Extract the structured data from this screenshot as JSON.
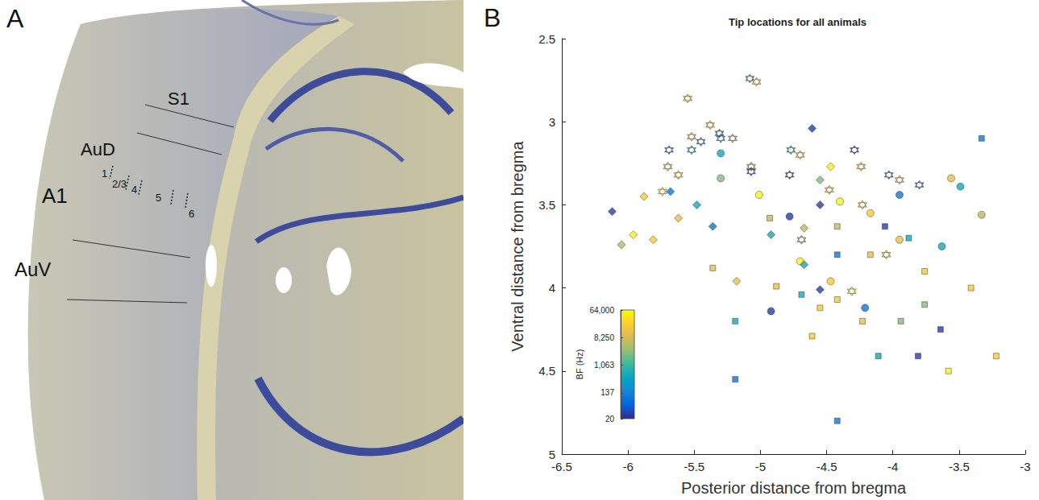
{
  "panel_a": {
    "letter": "A",
    "regions": [
      "S1",
      "AuD",
      "A1",
      "AuV"
    ],
    "layers": [
      "1",
      "2/3",
      "4",
      "5",
      "6"
    ]
  },
  "panel_b": {
    "letter": "B"
  },
  "chart_data": {
    "type": "scatter",
    "title": "Tip locations for all animals",
    "x_label": "Posterior distance from bregma",
    "y_label": "Ventral distance from bregma",
    "xlim": [
      -6.5,
      -3
    ],
    "xticks": [
      -6.5,
      -6,
      -5.5,
      -5,
      -4.5,
      -4,
      -3.5,
      -3
    ],
    "ylim": [
      2.5,
      5
    ],
    "yticks": [
      2.5,
      3,
      3.5,
      4,
      4.5,
      5
    ],
    "y_inverted": true,
    "grid": false,
    "colorbar": {
      "label": "BF (Hz)",
      "log": true,
      "lim": [
        20,
        64000
      ],
      "ticks": [
        20,
        137,
        1063,
        8250,
        64000
      ]
    },
    "series": [
      {
        "marker": "hexagram",
        "values": [
          [
            -5.08,
            2.74,
            500
          ],
          [
            -5.03,
            2.76,
            19000
          ],
          [
            -5.55,
            2.86,
            19000
          ],
          [
            -5.38,
            3.02,
            12000
          ],
          [
            -5.52,
            3.09,
            12000
          ],
          [
            -5.45,
            3.12,
            100
          ],
          [
            -5.31,
            3.07,
            100
          ],
          [
            -5.3,
            3.1,
            500
          ],
          [
            -5.21,
            3.1,
            2500
          ],
          [
            -5.69,
            3.17,
            100
          ],
          [
            -5.52,
            3.17,
            500
          ],
          [
            -5.7,
            3.27,
            12000
          ],
          [
            -5.62,
            3.32,
            19000
          ],
          [
            -5.07,
            3.27,
            2500
          ],
          [
            -5.07,
            3.3,
            30
          ],
          [
            -4.77,
            3.17,
            500
          ],
          [
            -4.7,
            3.2,
            19000
          ],
          [
            -4.78,
            3.32,
            30
          ],
          [
            -4.29,
            3.17,
            30
          ],
          [
            -4.24,
            3.27,
            19000
          ],
          [
            -4.48,
            3.41,
            19000
          ],
          [
            -4.03,
            3.32,
            100
          ],
          [
            -3.95,
            3.35,
            12000
          ],
          [
            -3.8,
            3.38,
            100
          ],
          [
            -4.23,
            3.5,
            19000
          ],
          [
            -4.69,
            3.71,
            2500
          ],
          [
            -4.05,
            3.8,
            19000
          ],
          [
            -5.74,
            3.42,
            55000
          ],
          [
            -4.31,
            4.02,
            55000
          ]
        ]
      },
      {
        "marker": "circle",
        "values": [
          [
            -5.3,
            3.19,
            500
          ],
          [
            -5.3,
            3.34,
            2500
          ],
          [
            -5.01,
            3.44,
            55000
          ],
          [
            -4.4,
            3.48,
            55000
          ],
          [
            -3.56,
            3.34,
            12000
          ],
          [
            -3.49,
            3.39,
            500
          ],
          [
            -3.95,
            3.44,
            100
          ],
          [
            -3.33,
            3.56,
            5700
          ],
          [
            -4.17,
            3.55,
            19000
          ],
          [
            -3.95,
            3.71,
            12000
          ],
          [
            -4.78,
            3.57,
            30
          ],
          [
            -4.7,
            3.84,
            55000
          ],
          [
            -3.63,
            3.75,
            500
          ],
          [
            -4.47,
            3.96,
            19000
          ],
          [
            -4.21,
            4.12,
            100
          ],
          [
            -4.92,
            4.14,
            30
          ]
        ]
      },
      {
        "marker": "diamond",
        "values": [
          [
            -6.12,
            3.54,
            30
          ],
          [
            -5.88,
            3.45,
            19000
          ],
          [
            -5.68,
            3.42,
            100
          ],
          [
            -5.48,
            3.5,
            500
          ],
          [
            -5.36,
            3.63,
            100
          ],
          [
            -5.62,
            3.58,
            12000
          ],
          [
            -5.96,
            3.68,
            55000
          ],
          [
            -6.05,
            3.74,
            5700
          ],
          [
            -5.81,
            3.71,
            19000
          ],
          [
            -4.61,
            3.04,
            30
          ],
          [
            -4.92,
            3.68,
            500
          ],
          [
            -4.67,
            3.64,
            5700
          ],
          [
            -4.55,
            3.5,
            30
          ],
          [
            -4.67,
            3.86,
            500
          ],
          [
            -5.18,
            3.96,
            12000
          ],
          [
            -4.55,
            4.01,
            30
          ],
          [
            -4.47,
            3.27,
            55000
          ],
          [
            -4.55,
            3.35,
            2500
          ]
        ]
      },
      {
        "marker": "square",
        "values": [
          [
            -4.93,
            3.58,
            5700
          ],
          [
            -4.42,
            3.63,
            5700
          ],
          [
            -4.06,
            3.63,
            30
          ],
          [
            -3.88,
            3.7,
            500
          ],
          [
            -4.42,
            3.8,
            100
          ],
          [
            -4.17,
            3.8,
            12000
          ],
          [
            -3.76,
            3.9,
            19000
          ],
          [
            -5.36,
            3.88,
            12000
          ],
          [
            -4.88,
            3.99,
            12000
          ],
          [
            -4.69,
            4.04,
            500
          ],
          [
            -4.55,
            4.12,
            19000
          ],
          [
            -4.42,
            4.07,
            19000
          ],
          [
            -4.23,
            4.2,
            12000
          ],
          [
            -3.94,
            4.2,
            2500
          ],
          [
            -3.76,
            4.1,
            2500
          ],
          [
            -3.41,
            4.0,
            19000
          ],
          [
            -3.33,
            3.1,
            100
          ],
          [
            -5.19,
            4.2,
            500
          ],
          [
            -4.61,
            4.29,
            19000
          ],
          [
            -3.64,
            4.25,
            30
          ],
          [
            -4.11,
            4.41,
            500
          ],
          [
            -3.81,
            4.41,
            30
          ],
          [
            -3.22,
            4.41,
            19000
          ],
          [
            -3.58,
            4.5,
            55000
          ],
          [
            -5.19,
            4.55,
            100
          ],
          [
            -4.42,
            4.8,
            100
          ]
        ]
      }
    ]
  }
}
